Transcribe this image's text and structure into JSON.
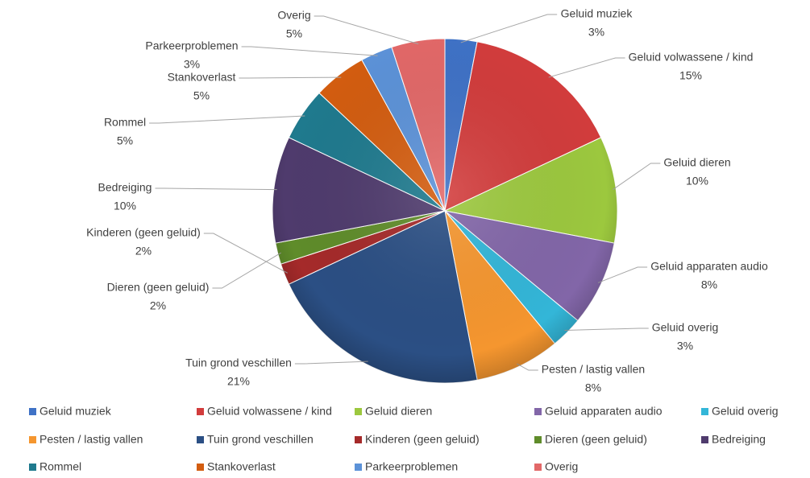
{
  "chart_data": {
    "type": "pie",
    "categories": [
      "Geluid muziek",
      "Geluid volwassene / kind",
      "Geluid dieren",
      "Geluid apparaten audio",
      "Geluid overig",
      "Pesten / lastig vallen",
      "Tuin grond veschillen",
      "Kinderen (geen geluid)",
      "Dieren (geen geluid)",
      "Bedreiging",
      "Rommel",
      "Stankoverlast",
      "Parkeerproblemen",
      "Overig"
    ],
    "values": [
      3,
      15,
      10,
      8,
      3,
      8,
      21,
      2,
      2,
      10,
      5,
      5,
      3,
      5
    ],
    "value_labels": [
      "3%",
      "15%",
      "10%",
      "8%",
      "3%",
      "8%",
      "21%",
      "2%",
      "2%",
      "10%",
      "5%",
      "5%",
      "3%",
      "5%"
    ],
    "colors": [
      "#3f72c6",
      "#d23c3c",
      "#9cc83e",
      "#8266a8",
      "#33b6d8",
      "#f5962f",
      "#2b4f84",
      "#a52a2a",
      "#5f8c2a",
      "#4f3b6d",
      "#1f7a8e",
      "#d35d10",
      "#5c92d8",
      "#e26868"
    ],
    "legend": "bottom"
  }
}
